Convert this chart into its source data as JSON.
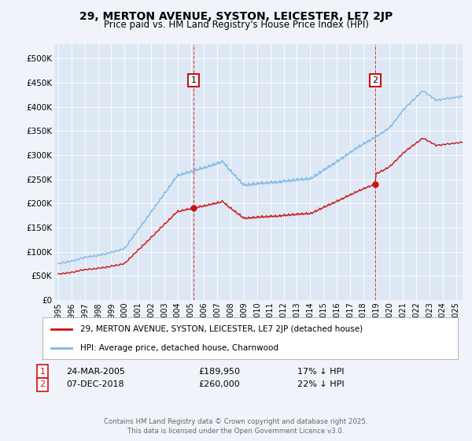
{
  "title": "29, MERTON AVENUE, SYSTON, LEICESTER, LE7 2JP",
  "subtitle": "Price paid vs. HM Land Registry's House Price Index (HPI)",
  "ylabel_ticks": [
    "£0",
    "£50K",
    "£100K",
    "£150K",
    "£200K",
    "£250K",
    "£300K",
    "£350K",
    "£400K",
    "£450K",
    "£500K"
  ],
  "ytick_values": [
    0,
    50000,
    100000,
    150000,
    200000,
    250000,
    300000,
    350000,
    400000,
    450000,
    500000
  ],
  "ylim": [
    0,
    530000
  ],
  "xlim_start": 1994.7,
  "xlim_end": 2025.5,
  "background_color": "#f0f4fa",
  "plot_bg_color": "#dde8f4",
  "grid_color": "#ffffff",
  "hpi_color": "#7ab8e8",
  "price_color": "#cc1111",
  "marker1_x": 2005.22,
  "marker2_x": 2018.92,
  "marker1_price": 189950,
  "marker2_price": 260000,
  "legend_label_price": "29, MERTON AVENUE, SYSTON, LEICESTER, LE7 2JP (detached house)",
  "legend_label_hpi": "HPI: Average price, detached house, Charnwood",
  "footer": "Contains HM Land Registry data © Crown copyright and database right 2025.\nThis data is licensed under the Open Government Licence v3.0.",
  "xtick_years": [
    1995,
    1996,
    1997,
    1998,
    1999,
    2000,
    2001,
    2002,
    2003,
    2004,
    2005,
    2006,
    2007,
    2008,
    2009,
    2010,
    2011,
    2012,
    2013,
    2014,
    2015,
    2016,
    2017,
    2018,
    2019,
    2020,
    2021,
    2022,
    2023,
    2024,
    2025
  ],
  "note1_date": "24-MAR-2005",
  "note1_price": "£189,950",
  "note1_hpi": "17% ↓ HPI",
  "note2_date": "07-DEC-2018",
  "note2_price": "£260,000",
  "note2_hpi": "22% ↓ HPI"
}
